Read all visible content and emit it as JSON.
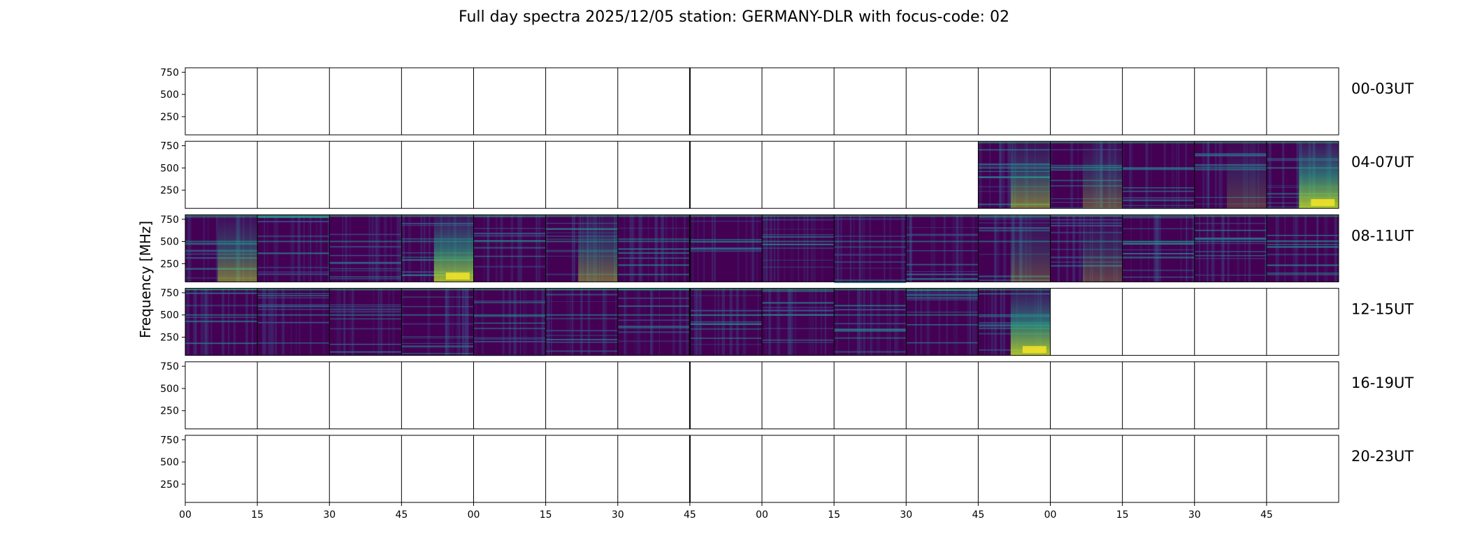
{
  "chart_data": {
    "type": "heatmap",
    "title": "Full day spectra 2025/12/05 station: GERMANY-DLR with focus-code: 02",
    "xlabel": "",
    "ylabel": "Frequency [MHz]",
    "yticks": [
      "750",
      "500",
      "250"
    ],
    "ytick_values": [
      750,
      500,
      250
    ],
    "ylim": [
      45,
      800
    ],
    "xticks": [
      "00",
      "15",
      "30",
      "45",
      "00",
      "15",
      "30",
      "45",
      "00",
      "15",
      "30",
      "45",
      "00",
      "15",
      "30",
      "45"
    ],
    "colormap": "viridis",
    "segment_minutes": 15,
    "segments_per_row": 16,
    "rows": [
      {
        "label": "00-03UT",
        "filled": []
      },
      {
        "label": "04-07UT",
        "filled": [
          11,
          12,
          13,
          14,
          15
        ]
      },
      {
        "label": "08-11UT",
        "filled": [
          0,
          1,
          2,
          3,
          4,
          5,
          6,
          7,
          8,
          9,
          10,
          11,
          12,
          13,
          14,
          15
        ]
      },
      {
        "label": "12-15UT",
        "filled": [
          0,
          1,
          2,
          3,
          4,
          5,
          6,
          7,
          8,
          9,
          10,
          11
        ]
      },
      {
        "label": "16-19UT",
        "filled": []
      },
      {
        "label": "20-23UT",
        "filled": []
      }
    ],
    "hotspots": [
      {
        "row": 1,
        "segment": 11,
        "intensity": 0.55
      },
      {
        "row": 1,
        "segment": 12,
        "intensity": 0.35
      },
      {
        "row": 1,
        "segment": 14,
        "intensity": 0.25
      },
      {
        "row": 1,
        "segment": 15,
        "intensity": 0.9
      },
      {
        "row": 2,
        "segment": 0,
        "intensity": 0.55
      },
      {
        "row": 2,
        "segment": 3,
        "intensity": 0.85
      },
      {
        "row": 2,
        "segment": 5,
        "intensity": 0.45
      },
      {
        "row": 2,
        "segment": 11,
        "intensity": 0.3
      },
      {
        "row": 2,
        "segment": 12,
        "intensity": 0.3
      },
      {
        "row": 3,
        "segment": 11,
        "intensity": 0.9
      }
    ]
  }
}
